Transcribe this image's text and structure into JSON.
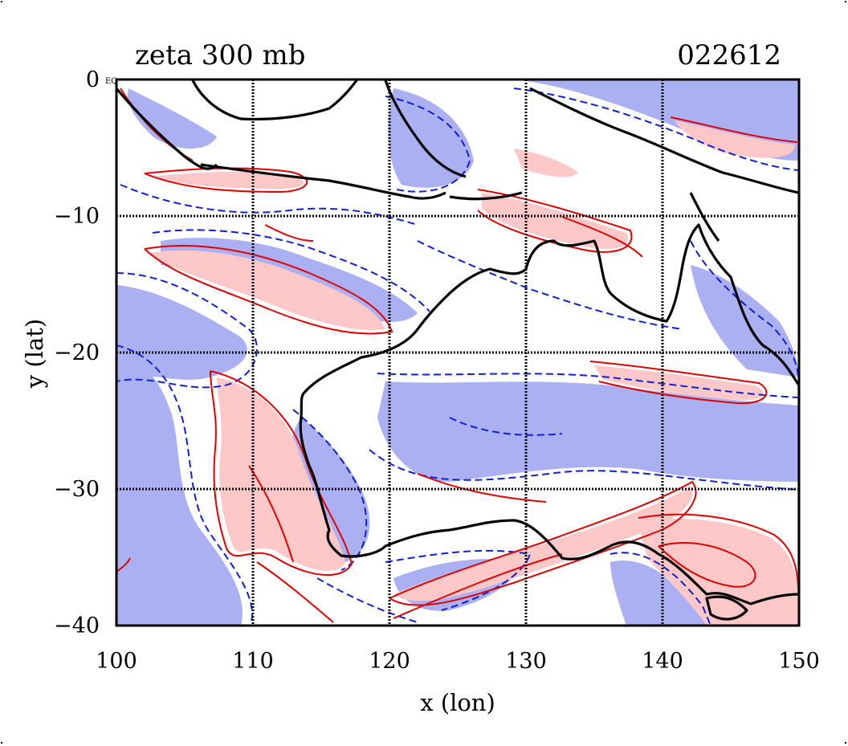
{
  "title_left": "zeta 300 mb",
  "title_right": "022612",
  "corner_label": "EQ",
  "x_axis": {
    "label": "x (lon)",
    "ticks": [
      "100",
      "110",
      "120",
      "130",
      "140",
      "150"
    ],
    "range": [
      100,
      150
    ]
  },
  "y_axis": {
    "label": "y (lat)",
    "ticks": [
      "0",
      "−10",
      "−20",
      "−30",
      "−40"
    ],
    "range": [
      -40,
      0
    ]
  },
  "colors": {
    "positive_line": "#e00000",
    "positive_fill": "#ffc8c8",
    "negative_line": "#1020d8",
    "negative_fill": "#aab0f2",
    "coast": "#000000",
    "grid": "#000000"
  },
  "legend": "none",
  "grid": "on"
}
